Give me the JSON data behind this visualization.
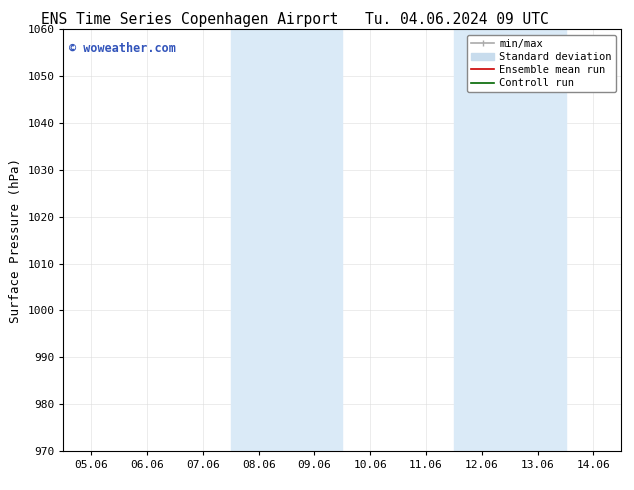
{
  "title_left": "ENS Time Series Copenhagen Airport",
  "title_right": "Tu. 04.06.2024 09 UTC",
  "ylabel": "Surface Pressure (hPa)",
  "ylim": [
    970,
    1060
  ],
  "yticks": [
    970,
    980,
    990,
    1000,
    1010,
    1020,
    1030,
    1040,
    1050,
    1060
  ],
  "xtick_labels": [
    "05.06",
    "06.06",
    "07.06",
    "08.06",
    "09.06",
    "10.06",
    "11.06",
    "12.06",
    "13.06",
    "14.06"
  ],
  "xtick_positions": [
    0,
    1,
    2,
    3,
    4,
    5,
    6,
    7,
    8,
    9
  ],
  "shaded_bands": [
    {
      "x_start": 2.5,
      "x_end": 4.5
    },
    {
      "x_start": 6.5,
      "x_end": 8.5
    }
  ],
  "shade_color": "#daeaf7",
  "watermark_text": "© woweather.com",
  "watermark_color": "#3355bb",
  "legend_items": [
    {
      "label": "min/max",
      "color": "#aaaaaa",
      "lw": 1.2
    },
    {
      "label": "Standard deviation",
      "color": "#c8dced",
      "lw": 5
    },
    {
      "label": "Ensemble mean run",
      "color": "#cc0000",
      "lw": 1.2
    },
    {
      "label": "Controll run",
      "color": "#006600",
      "lw": 1.2
    }
  ],
  "bg_color": "#ffffff",
  "title_fontsize": 10.5,
  "axis_label_fontsize": 9,
  "tick_fontsize": 8,
  "legend_fontsize": 7.5
}
